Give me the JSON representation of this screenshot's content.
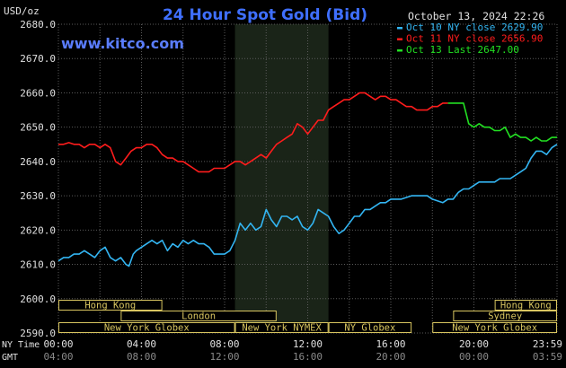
{
  "header": {
    "unit": "USD/oz",
    "title": "24 Hour Spot Gold (Bid)",
    "timestamp": "October 13, 2024 22:26",
    "site": "www.kitco.com"
  },
  "colors": {
    "background": "#000000",
    "axis_text": "#e0e0e0",
    "grid": "#5a5a5a",
    "title": "#3f6fff",
    "site": "#5a7dff",
    "shade": "#1a2418",
    "sessions_fill": "#000000",
    "sessions_border": "#d8c560",
    "sessions_text": "#d8c560"
  },
  "axis": {
    "y_ticks": [
      "2680.0",
      "2670.0",
      "2660.0",
      "2650.0",
      "2640.0",
      "2630.0",
      "2620.0",
      "2610.0",
      "2600.0",
      "2590.0"
    ],
    "ny_time_label": "NY Time",
    "gmt_label": "GMT",
    "ny_times": [
      "00:00",
      "04:00",
      "08:00",
      "12:00",
      "16:00",
      "20:00",
      "23:59"
    ],
    "gmt_times": [
      "04:00",
      "08:00",
      "12:00",
      "16:00",
      "20:00",
      "00:00",
      "03:59"
    ]
  },
  "chart_data": {
    "type": "line",
    "title": "24 Hour Spot Gold (Bid)",
    "ylabel": "USD/oz",
    "ylim": [
      2590,
      2680
    ],
    "xlim_hours_ny": [
      0,
      24
    ],
    "grid": true,
    "legend_position": "top-right",
    "shaded_region_hours": [
      8.5,
      13
    ],
    "series": [
      {
        "name": "Oct 10 NY close 2629.90",
        "color": "#33b5f2",
        "points": [
          [
            0,
            2611
          ],
          [
            0.25,
            2612
          ],
          [
            0.5,
            2612
          ],
          [
            0.75,
            2613
          ],
          [
            1,
            2613
          ],
          [
            1.25,
            2614
          ],
          [
            1.5,
            2613
          ],
          [
            1.75,
            2612
          ],
          [
            2,
            2614
          ],
          [
            2.25,
            2615
          ],
          [
            2.5,
            2612
          ],
          [
            2.75,
            2611
          ],
          [
            3,
            2612
          ],
          [
            3.25,
            2610
          ],
          [
            3.4,
            2609.5
          ],
          [
            3.6,
            2613
          ],
          [
            3.75,
            2614
          ],
          [
            4,
            2615
          ],
          [
            4.25,
            2616
          ],
          [
            4.5,
            2617
          ],
          [
            4.75,
            2616
          ],
          [
            5,
            2617
          ],
          [
            5.25,
            2614
          ],
          [
            5.5,
            2616
          ],
          [
            5.75,
            2615
          ],
          [
            6,
            2617
          ],
          [
            6.25,
            2616
          ],
          [
            6.5,
            2617
          ],
          [
            6.75,
            2616
          ],
          [
            7,
            2616
          ],
          [
            7.25,
            2615
          ],
          [
            7.5,
            2613
          ],
          [
            7.75,
            2613
          ],
          [
            8,
            2613
          ],
          [
            8.25,
            2614
          ],
          [
            8.5,
            2617
          ],
          [
            8.75,
            2622
          ],
          [
            9,
            2620
          ],
          [
            9.25,
            2622
          ],
          [
            9.5,
            2620
          ],
          [
            9.75,
            2621
          ],
          [
            10,
            2626
          ],
          [
            10.25,
            2623
          ],
          [
            10.5,
            2621
          ],
          [
            10.75,
            2624
          ],
          [
            11,
            2624
          ],
          [
            11.25,
            2623
          ],
          [
            11.5,
            2624
          ],
          [
            11.75,
            2621
          ],
          [
            12,
            2620
          ],
          [
            12.25,
            2622
          ],
          [
            12.5,
            2626
          ],
          [
            12.75,
            2625
          ],
          [
            13,
            2624
          ],
          [
            13.25,
            2621
          ],
          [
            13.5,
            2619
          ],
          [
            13.75,
            2620
          ],
          [
            14,
            2622
          ],
          [
            14.25,
            2624
          ],
          [
            14.5,
            2624
          ],
          [
            14.75,
            2626
          ],
          [
            15,
            2626
          ],
          [
            15.25,
            2627
          ],
          [
            15.5,
            2628
          ],
          [
            15.75,
            2628
          ],
          [
            16,
            2629
          ],
          [
            16.25,
            2629
          ],
          [
            16.5,
            2629
          ],
          [
            16.75,
            2629.5
          ],
          [
            17,
            2630
          ],
          [
            17.5,
            2630
          ],
          [
            17.75,
            2630
          ],
          [
            18,
            2629
          ],
          [
            18.5,
            2628
          ],
          [
            18.75,
            2629
          ],
          [
            19,
            2629
          ],
          [
            19.25,
            2631
          ],
          [
            19.5,
            2632
          ],
          [
            19.75,
            2632
          ],
          [
            20,
            2633
          ],
          [
            20.25,
            2634
          ],
          [
            20.5,
            2634
          ],
          [
            20.75,
            2634
          ],
          [
            21,
            2634
          ],
          [
            21.25,
            2635
          ],
          [
            21.5,
            2635
          ],
          [
            21.75,
            2635
          ],
          [
            22,
            2636
          ],
          [
            22.25,
            2637
          ],
          [
            22.5,
            2638
          ],
          [
            22.75,
            2641
          ],
          [
            23,
            2643
          ],
          [
            23.25,
            2643
          ],
          [
            23.5,
            2642
          ],
          [
            23.75,
            2644
          ],
          [
            24,
            2645
          ]
        ]
      },
      {
        "name": "Oct 11 NY close 2656.90",
        "color": "#ff1c1c",
        "points": [
          [
            0,
            2645
          ],
          [
            0.25,
            2645
          ],
          [
            0.5,
            2645.5
          ],
          [
            0.75,
            2645
          ],
          [
            1,
            2645
          ],
          [
            1.25,
            2644
          ],
          [
            1.5,
            2645
          ],
          [
            1.75,
            2645
          ],
          [
            2,
            2644
          ],
          [
            2.25,
            2645
          ],
          [
            2.5,
            2644
          ],
          [
            2.75,
            2640
          ],
          [
            3,
            2639
          ],
          [
            3.25,
            2641
          ],
          [
            3.5,
            2643
          ],
          [
            3.75,
            2644
          ],
          [
            4,
            2644
          ],
          [
            4.25,
            2645
          ],
          [
            4.5,
            2645
          ],
          [
            4.75,
            2644
          ],
          [
            5,
            2642
          ],
          [
            5.25,
            2641
          ],
          [
            5.5,
            2641
          ],
          [
            5.75,
            2640
          ],
          [
            6,
            2640
          ],
          [
            6.25,
            2639
          ],
          [
            6.5,
            2638
          ],
          [
            6.75,
            2637
          ],
          [
            7,
            2637
          ],
          [
            7.25,
            2637
          ],
          [
            7.5,
            2638
          ],
          [
            7.75,
            2638
          ],
          [
            8,
            2638
          ],
          [
            8.25,
            2639
          ],
          [
            8.5,
            2640
          ],
          [
            8.75,
            2640
          ],
          [
            9,
            2639
          ],
          [
            9.25,
            2640
          ],
          [
            9.5,
            2641
          ],
          [
            9.75,
            2642
          ],
          [
            10,
            2641
          ],
          [
            10.25,
            2643
          ],
          [
            10.5,
            2645
          ],
          [
            10.75,
            2646
          ],
          [
            11,
            2647
          ],
          [
            11.25,
            2648
          ],
          [
            11.5,
            2651
          ],
          [
            11.75,
            2650
          ],
          [
            12,
            2648
          ],
          [
            12.25,
            2650
          ],
          [
            12.5,
            2652
          ],
          [
            12.75,
            2652
          ],
          [
            13,
            2655
          ],
          [
            13.25,
            2656
          ],
          [
            13.5,
            2657
          ],
          [
            13.75,
            2658
          ],
          [
            14,
            2658
          ],
          [
            14.25,
            2659
          ],
          [
            14.5,
            2660
          ],
          [
            14.75,
            2660
          ],
          [
            15,
            2659
          ],
          [
            15.25,
            2658
          ],
          [
            15.5,
            2659
          ],
          [
            15.75,
            2659
          ],
          [
            16,
            2658
          ],
          [
            16.25,
            2658
          ],
          [
            16.5,
            2657
          ],
          [
            16.75,
            2656
          ],
          [
            17,
            2656
          ],
          [
            17.25,
            2655
          ],
          [
            17.5,
            2655
          ],
          [
            17.75,
            2655
          ],
          [
            18,
            2656
          ],
          [
            18.25,
            2656
          ],
          [
            18.5,
            2657
          ],
          [
            18.75,
            2657
          ]
        ]
      },
      {
        "name": "Oct 13 Last 2647.00",
        "color": "#22e022",
        "points": [
          [
            18.75,
            2657
          ],
          [
            19,
            2657
          ],
          [
            19.5,
            2657
          ],
          [
            19.75,
            2651
          ],
          [
            20,
            2650
          ],
          [
            20.25,
            2651
          ],
          [
            20.5,
            2650
          ],
          [
            20.75,
            2650
          ],
          [
            21,
            2649
          ],
          [
            21.25,
            2649
          ],
          [
            21.5,
            2650
          ],
          [
            21.75,
            2647
          ],
          [
            22,
            2648
          ],
          [
            22.25,
            2647
          ],
          [
            22.5,
            2647
          ],
          [
            22.75,
            2646
          ],
          [
            23,
            2647
          ],
          [
            23.25,
            2646
          ],
          [
            23.5,
            2646
          ],
          [
            23.75,
            2647
          ],
          [
            24,
            2647
          ]
        ]
      }
    ]
  },
  "sessions": [
    {
      "label": "Hong Kong",
      "start_h": 0,
      "end_h": 5,
      "row": 1
    },
    {
      "label": "London",
      "start_h": 3,
      "end_h": 10.5,
      "row": 2
    },
    {
      "label": "New York Globex",
      "start_h": 0,
      "end_h": 8.5,
      "row": 3
    },
    {
      "label": "New York NYMEX",
      "start_h": 8.5,
      "end_h": 13,
      "row": 3
    },
    {
      "label": "NY Globex",
      "start_h": 13,
      "end_h": 17,
      "row": 3
    },
    {
      "label": "Hong Kong",
      "start_h": 21,
      "end_h": 24,
      "row": 1
    },
    {
      "label": "Sydney",
      "start_h": 19,
      "end_h": 24,
      "row": 2
    },
    {
      "label": "New York Globex",
      "start_h": 18,
      "end_h": 24,
      "row": 3
    }
  ]
}
